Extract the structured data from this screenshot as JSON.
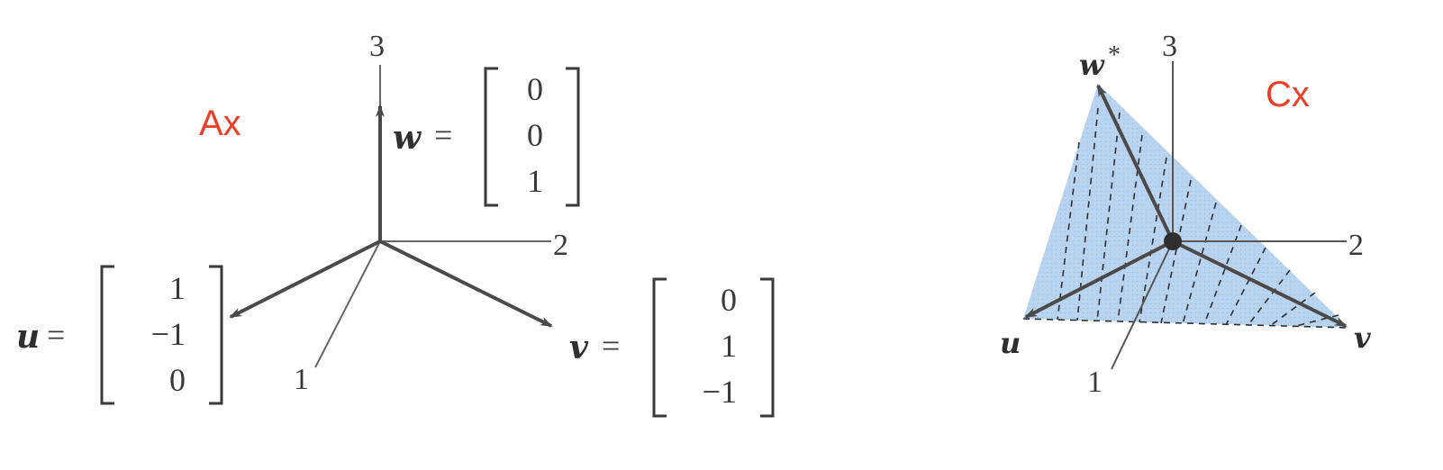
{
  "colors": {
    "panel_label": "#e8402a",
    "line": "#4a4a4a",
    "plane_fill": "#b9d4ef",
    "point": "#2f2f2f"
  },
  "left": {
    "panel_label": "Ax",
    "axis_labels": {
      "x1": "1",
      "x2": "2",
      "x3": "3"
    },
    "vectors": {
      "u": {
        "name": "u",
        "entries": [
          "1",
          "−1",
          "0"
        ]
      },
      "v": {
        "name": "v",
        "entries": [
          "0",
          "1",
          "−1"
        ]
      },
      "w": {
        "name": "w",
        "entries": [
          "0",
          "0",
          "1"
        ]
      }
    },
    "equals": "="
  },
  "right": {
    "panel_label": "Cx",
    "axis_labels": {
      "x1": "1",
      "x2": "2",
      "x3": "3"
    },
    "vector_labels": {
      "u": "u",
      "v": "v",
      "w": "w",
      "w_star": "*"
    }
  }
}
